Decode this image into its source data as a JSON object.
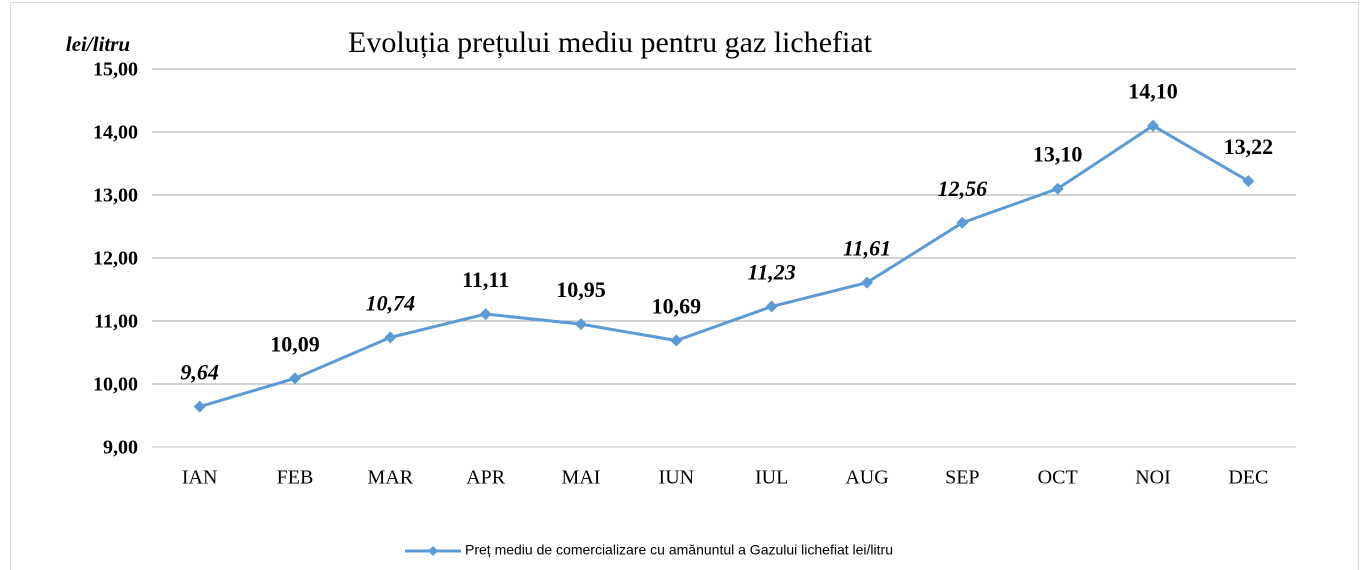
{
  "chart_data": {
    "type": "line",
    "title": "Evoluția prețului mediu pentru gaz lichefiat",
    "y_axis_label": "lei/litru",
    "categories": [
      "IAN",
      "FEB",
      "MAR",
      "APR",
      "MAI",
      "IUN",
      "IUL",
      "AUG",
      "SEP",
      "OCT",
      "NOI",
      "DEC"
    ],
    "series": [
      {
        "name": "Preț mediu de comercializare cu amănuntul a Gazului lichefiat lei/litru",
        "color": "#5b9bd5",
        "values": [
          9.64,
          10.09,
          10.74,
          11.11,
          10.95,
          10.69,
          11.23,
          11.61,
          12.56,
          13.1,
          14.1,
          13.22
        ],
        "value_labels": [
          "9,64",
          "10,09",
          "10,74",
          "11,11",
          "10,95",
          "10,69",
          "11,23",
          "11,61",
          "12,56",
          "13,10",
          "14,10",
          "13,22"
        ]
      }
    ],
    "ylim": [
      9,
      15
    ],
    "yticks": [
      {
        "value": 9,
        "label": "9,00"
      },
      {
        "value": 10,
        "label": "10,00"
      },
      {
        "value": 11,
        "label": "11,00"
      },
      {
        "value": 12,
        "label": "12,00"
      },
      {
        "value": 13,
        "label": "13,00"
      },
      {
        "value": 14,
        "label": "14,00"
      },
      {
        "value": 15,
        "label": "15,00"
      }
    ],
    "grid": true,
    "legend": "bottom"
  }
}
